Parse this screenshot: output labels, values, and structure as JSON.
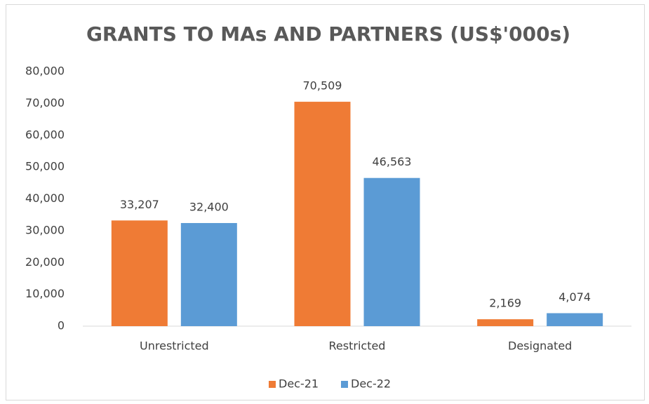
{
  "chart_data": {
    "type": "bar",
    "title": "GRANTS TO MAs AND PARTNERS (US$'000s)",
    "categories": [
      "Unrestricted",
      "Restricted",
      "Designated"
    ],
    "series": [
      {
        "name": "Dec-21",
        "color": "#ef7b35",
        "values": [
          33207,
          70509,
          2169
        ],
        "value_labels": [
          "33,207",
          "70,509",
          "2,169"
        ]
      },
      {
        "name": "Dec-22",
        "color": "#5b9bd5",
        "values": [
          32400,
          46563,
          4074
        ],
        "value_labels": [
          "32,400",
          "46,563",
          "4,074"
        ]
      }
    ],
    "ylim": [
      0,
      80000
    ],
    "yticks": [
      0,
      {
        "value": 10000,
        "label": "10,000"
      },
      {
        "value": 20000,
        "label": "20,000"
      },
      {
        "value": 30000,
        "label": "30,000"
      },
      {
        "value": 40000,
        "label": "40,000"
      },
      {
        "value": 50000,
        "label": "50,000"
      },
      {
        "value": 60000,
        "label": "60,000"
      },
      {
        "value": 70000,
        "label": "70,000"
      },
      {
        "value": 80000,
        "label": "80,000"
      }
    ],
    "grid": false,
    "legend": "bottom"
  }
}
